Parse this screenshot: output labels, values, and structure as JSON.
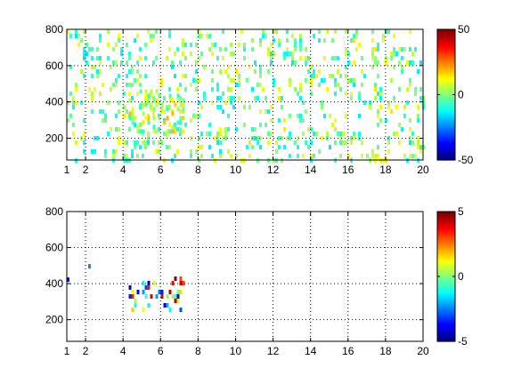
{
  "chart_data": [
    {
      "type": "heatmap",
      "title": "",
      "xlabel": "",
      "ylabel": "",
      "xlim": [
        1,
        20
      ],
      "ylim": [
        80,
        800
      ],
      "xticks": [
        1,
        2,
        4,
        6,
        8,
        10,
        12,
        14,
        16,
        18,
        20
      ],
      "yticks": [
        200,
        400,
        600,
        800
      ],
      "grid": "dotted",
      "colormap": "jet",
      "clim": [
        -50,
        50
      ],
      "colorbar_ticks": [
        -50,
        0,
        50
      ],
      "description_of_values": "dense sparse field of near-zero values (mostly cyan/green/yellow) across whole plane, densest cluster near x=4.5-7, y=250-450; vertical streaks at x≈12.3, 13.8, 15.2, 16.6, 17.3, 18.4, 19.3",
      "clusters": [
        {
          "x": [
            1,
            20
          ],
          "y": [
            80,
            800
          ],
          "value_range": [
            -15,
            15
          ],
          "density": 0.35
        },
        {
          "x": [
            4.3,
            7.2
          ],
          "y": [
            230,
            470
          ],
          "value_range": [
            -10,
            20
          ],
          "density": 0.7
        }
      ]
    },
    {
      "type": "heatmap",
      "title": "",
      "xlabel": "",
      "ylabel": "",
      "xlim": [
        1,
        20
      ],
      "ylim": [
        80,
        800
      ],
      "xticks": [
        1,
        2,
        4,
        6,
        8,
        10,
        12,
        14,
        16,
        18,
        20
      ],
      "yticks": [
        200,
        400,
        600,
        800
      ],
      "grid": "dotted",
      "colormap": "jet",
      "clim": [
        -5,
        5
      ],
      "colorbar_ticks": [
        -5,
        0,
        5
      ],
      "clusters": [
        {
          "x": [
            4.3,
            7.2
          ],
          "y": [
            250,
            440
          ],
          "value_range": [
            -5,
            5
          ],
          "density": 0.55
        },
        {
          "x": [
            1.0,
            2.2
          ],
          "y": [
            80,
            780
          ],
          "value_range": [
            -5,
            5
          ],
          "density": 0.05
        }
      ]
    }
  ]
}
